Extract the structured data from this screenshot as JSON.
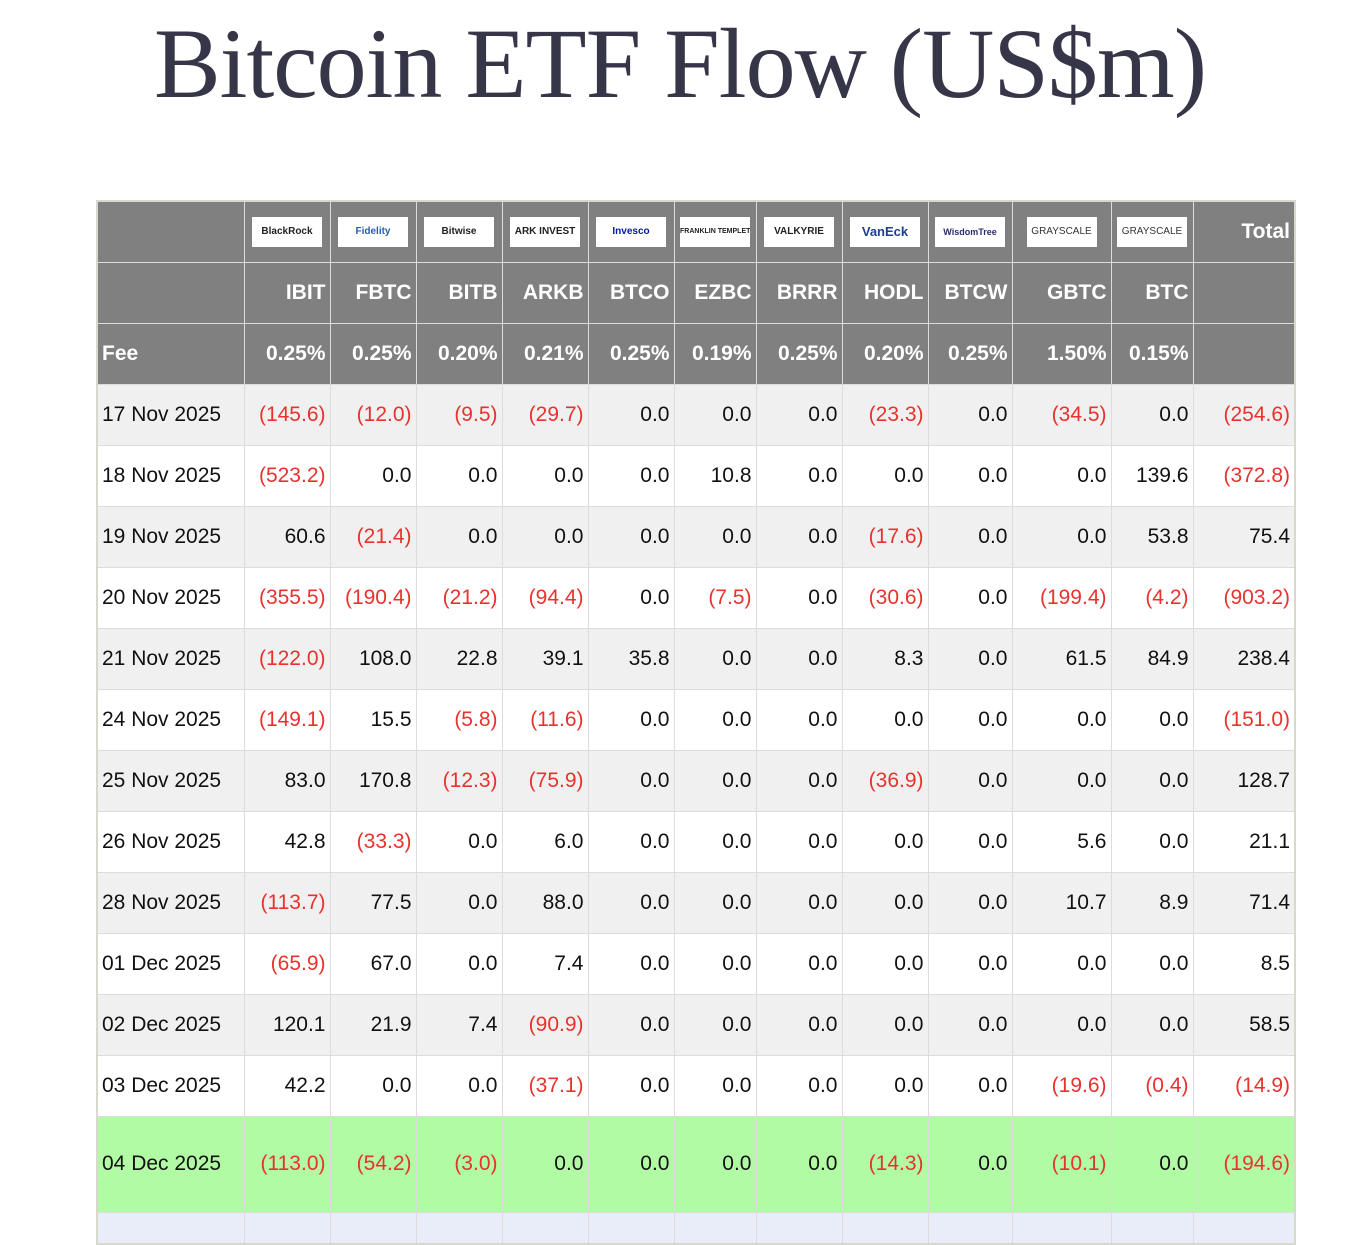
{
  "title": "Bitcoin ETF Flow (US$m)",
  "issuers": [
    {
      "logo": "BlackRock",
      "ticker": "IBIT",
      "fee": "0.25%"
    },
    {
      "logo": "Fidelity",
      "ticker": "FBTC",
      "fee": "0.25%"
    },
    {
      "logo": "Bitwise",
      "ticker": "BITB",
      "fee": "0.20%"
    },
    {
      "logo": "ARK INVEST",
      "ticker": "ARKB",
      "fee": "0.21%"
    },
    {
      "logo": "Invesco",
      "ticker": "BTCO",
      "fee": "0.25%"
    },
    {
      "logo": "FRANKLIN TEMPLETON",
      "ticker": "EZBC",
      "fee": "0.19%"
    },
    {
      "logo": "VALKYRIE",
      "ticker": "BRRR",
      "fee": "0.25%"
    },
    {
      "logo": "VanEck",
      "ticker": "HODL",
      "fee": "0.20%"
    },
    {
      "logo": "WisdomTree",
      "ticker": "BTCW",
      "fee": "0.25%"
    },
    {
      "logo": "GRAYSCALE",
      "ticker": "GBTC",
      "fee": "1.50%"
    },
    {
      "logo": "GRAYSCALE",
      "ticker": "BTC",
      "fee": "0.15%"
    }
  ],
  "total_label": "Total",
  "fee_label": "Fee",
  "rows": [
    {
      "date": "17 Nov 2025",
      "values": [
        "(145.6)",
        "(12.0)",
        "(9.5)",
        "(29.7)",
        "0.0",
        "0.0",
        "0.0",
        "(23.3)",
        "0.0",
        "(34.5)",
        "0.0"
      ],
      "total": "(254.6)"
    },
    {
      "date": "18 Nov 2025",
      "values": [
        "(523.2)",
        "0.0",
        "0.0",
        "0.0",
        "0.0",
        "10.8",
        "0.0",
        "0.0",
        "0.0",
        "0.0",
        "139.6"
      ],
      "total": "(372.8)"
    },
    {
      "date": "19 Nov 2025",
      "values": [
        "60.6",
        "(21.4)",
        "0.0",
        "0.0",
        "0.0",
        "0.0",
        "0.0",
        "(17.6)",
        "0.0",
        "0.0",
        "53.8"
      ],
      "total": "75.4"
    },
    {
      "date": "20 Nov 2025",
      "values": [
        "(355.5)",
        "(190.4)",
        "(21.2)",
        "(94.4)",
        "0.0",
        "(7.5)",
        "0.0",
        "(30.6)",
        "0.0",
        "(199.4)",
        "(4.2)"
      ],
      "total": "(903.2)"
    },
    {
      "date": "21 Nov 2025",
      "values": [
        "(122.0)",
        "108.0",
        "22.8",
        "39.1",
        "35.8",
        "0.0",
        "0.0",
        "8.3",
        "0.0",
        "61.5",
        "84.9"
      ],
      "total": "238.4"
    },
    {
      "date": "24 Nov 2025",
      "values": [
        "(149.1)",
        "15.5",
        "(5.8)",
        "(11.6)",
        "0.0",
        "0.0",
        "0.0",
        "0.0",
        "0.0",
        "0.0",
        "0.0"
      ],
      "total": "(151.0)"
    },
    {
      "date": "25 Nov 2025",
      "values": [
        "83.0",
        "170.8",
        "(12.3)",
        "(75.9)",
        "0.0",
        "0.0",
        "0.0",
        "(36.9)",
        "0.0",
        "0.0",
        "0.0"
      ],
      "total": "128.7"
    },
    {
      "date": "26 Nov 2025",
      "values": [
        "42.8",
        "(33.3)",
        "0.0",
        "6.0",
        "0.0",
        "0.0",
        "0.0",
        "0.0",
        "0.0",
        "5.6",
        "0.0"
      ],
      "total": "21.1"
    },
    {
      "date": "28 Nov 2025",
      "values": [
        "(113.7)",
        "77.5",
        "0.0",
        "88.0",
        "0.0",
        "0.0",
        "0.0",
        "0.0",
        "0.0",
        "10.7",
        "8.9"
      ],
      "total": "71.4"
    },
    {
      "date": "01 Dec 2025",
      "values": [
        "(65.9)",
        "67.0",
        "0.0",
        "7.4",
        "0.0",
        "0.0",
        "0.0",
        "0.0",
        "0.0",
        "0.0",
        "0.0"
      ],
      "total": "8.5"
    },
    {
      "date": "02 Dec 2025",
      "values": [
        "120.1",
        "21.9",
        "7.4",
        "(90.9)",
        "0.0",
        "0.0",
        "0.0",
        "0.0",
        "0.0",
        "0.0",
        "0.0"
      ],
      "total": "58.5"
    },
    {
      "date": "03 Dec 2025",
      "values": [
        "42.2",
        "0.0",
        "0.0",
        "(37.1)",
        "0.0",
        "0.0",
        "0.0",
        "0.0",
        "0.0",
        "(19.6)",
        "(0.4)"
      ],
      "total": "(14.9)"
    },
    {
      "date": "04 Dec 2025",
      "values": [
        "(113.0)",
        "(54.2)",
        "(3.0)",
        "0.0",
        "0.0",
        "0.0",
        "0.0",
        "(14.3)",
        "0.0",
        "(10.1)",
        "0.0"
      ],
      "total": "(194.6)",
      "highlight": true
    }
  ],
  "colors": {
    "header_bg": "#808080",
    "negative": "#e8322d",
    "highlight": "#b2fba5",
    "title": "#363648"
  }
}
